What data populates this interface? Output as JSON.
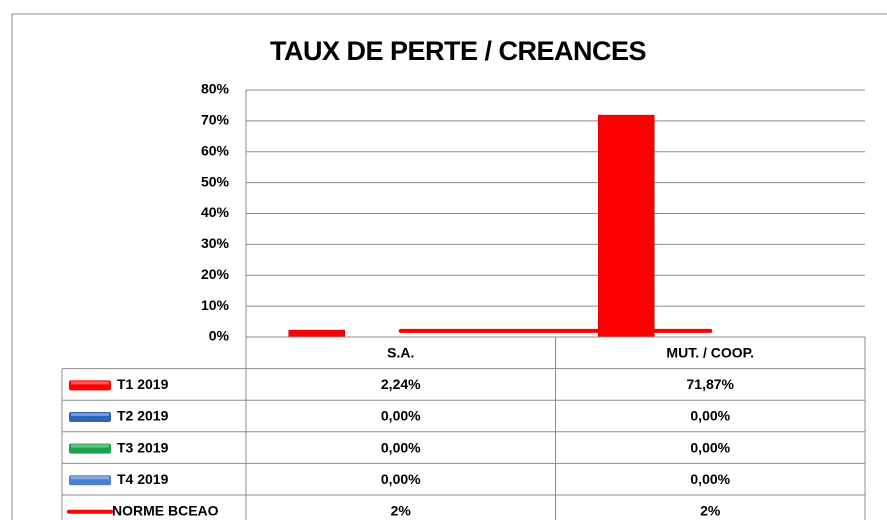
{
  "chart_data": {
    "type": "bar",
    "title": "TAUX DE PERTE / CREANCES",
    "categories": [
      "S.A.",
      "MUT. / COOP."
    ],
    "series": [
      {
        "name": "T1 2019",
        "color": "#ff0000",
        "values": [
          2.24,
          71.87
        ],
        "value_labels": [
          "2,24%",
          "71,87%"
        ]
      },
      {
        "name": "T2 2019",
        "color": "#2f64b8",
        "values": [
          0,
          0
        ],
        "value_labels": [
          "0,00%",
          "0,00%"
        ]
      },
      {
        "name": "T3 2019",
        "color": "#1ea24e",
        "values": [
          0,
          0
        ],
        "value_labels": [
          "0,00%",
          "0,00%"
        ]
      },
      {
        "name": "T4 2019",
        "color": "#4a7fd2",
        "values": [
          0,
          0
        ],
        "value_labels": [
          "0,00%",
          "0,00%"
        ]
      },
      {
        "name": "NORME BCEAO",
        "type": "line",
        "color": "#ff0000",
        "values": [
          2,
          2
        ],
        "value_labels": [
          "2%",
          "2%"
        ]
      }
    ],
    "ylim": [
      0,
      80
    ],
    "yticks": [
      {
        "value": 0,
        "label": "0%"
      },
      {
        "value": 10,
        "label": "10%"
      },
      {
        "value": 20,
        "label": "20%"
      },
      {
        "value": 30,
        "label": "30%"
      },
      {
        "value": 40,
        "label": "40%"
      },
      {
        "value": 50,
        "label": "50%"
      },
      {
        "value": 60,
        "label": "60%"
      },
      {
        "value": 70,
        "label": "70%"
      },
      {
        "value": 80,
        "label": "80%"
      }
    ],
    "grid": true
  }
}
